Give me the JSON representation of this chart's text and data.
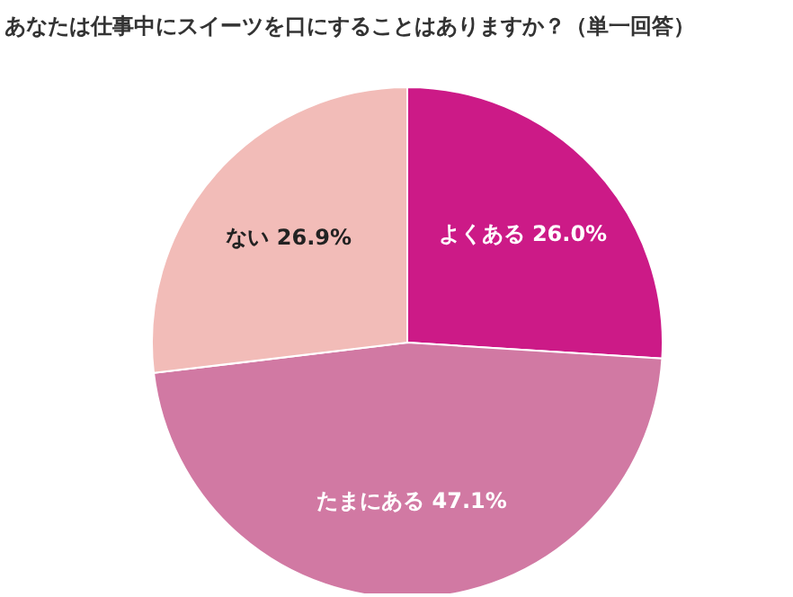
{
  "chart_data": {
    "type": "pie",
    "title": "あなたは仕事中にスイーツを口にすることはありますか？（単一回答）",
    "categories": [
      "よくある",
      "たまにある",
      "ない"
    ],
    "values": [
      26.0,
      47.1,
      26.9
    ],
    "value_labels": [
      "26.0%",
      "47.1%",
      "26.9%"
    ],
    "colors": [
      "#cc1a87",
      "#d179a3",
      "#f2bcb8"
    ]
  }
}
